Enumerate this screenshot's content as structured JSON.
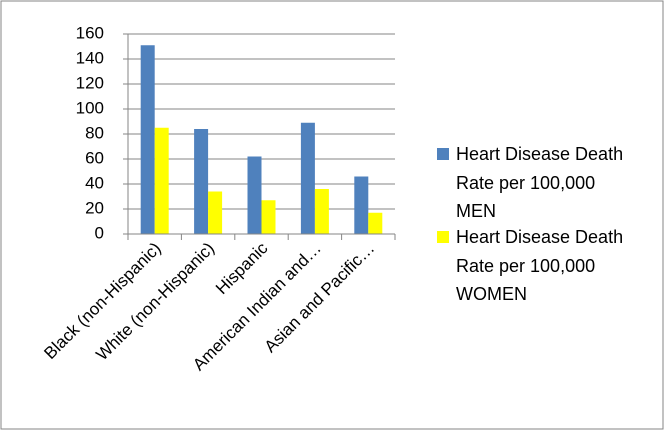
{
  "chart_data": {
    "type": "bar",
    "categories": [
      "Black (non-Hispanic)",
      "White (non-Hispanic)",
      "Hispanic",
      "American Indian and…",
      "Asian and Pacific…"
    ],
    "series": [
      {
        "name": "Heart Disease Death Rate per 100,000 MEN",
        "color": "#4f81bd",
        "values": [
          151,
          84,
          62,
          89,
          46
        ]
      },
      {
        "name": "Heart Disease Death Rate per 100,000 WOMEN",
        "color": "#ffff00",
        "values": [
          85,
          34,
          27,
          36,
          17
        ]
      }
    ],
    "ylim": [
      0,
      160
    ],
    "yticks": [
      0,
      20,
      40,
      60,
      80,
      100,
      120,
      140,
      160
    ],
    "grid": true,
    "legend": "right"
  }
}
